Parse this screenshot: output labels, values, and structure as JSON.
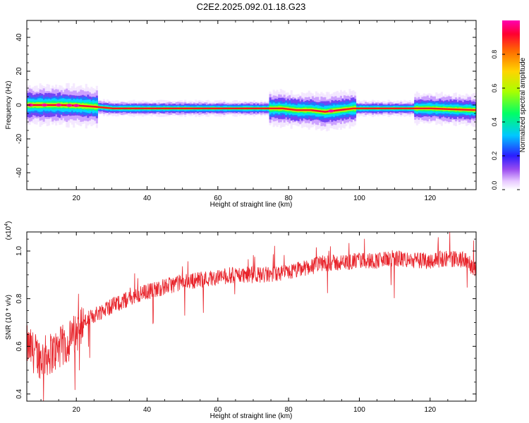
{
  "title": "C2E2.2025.092.01.18.G23",
  "colors": {
    "snr_line": "#e8232a",
    "colormap": [
      "#ffffff",
      "#d9a8ff",
      "#8a2be2",
      "#0000ff",
      "#00ffff",
      "#00ff00",
      "#ffff00",
      "#ff8c00",
      "#ff0000",
      "#ff00ff"
    ]
  },
  "chart_data": [
    {
      "type": "heatmap",
      "title": "C2E2.2025.092.01.18.G23",
      "xlabel": "Height of straight line (km)",
      "ylabel": "Frequency (Hz)",
      "xlim": [
        6,
        133
      ],
      "ylim": [
        -50,
        50
      ],
      "x_ticks": [
        20,
        40,
        60,
        80,
        100,
        120
      ],
      "y_ticks": [
        40,
        20,
        0,
        -20,
        -40
      ],
      "colorbar": {
        "label": "Normalized spectral amplitude",
        "range": [
          0,
          1
        ],
        "ticks": [
          "0.8",
          "0.6",
          "0.4",
          "0.2",
          "0.0"
        ],
        "tick_values": [
          0.8,
          0.6,
          0.4,
          0.2,
          0.0
        ]
      },
      "ridge": {
        "x": [
          6,
          10,
          15,
          20,
          25,
          30,
          40,
          50,
          60,
          70,
          78,
          82,
          86,
          90,
          94,
          98,
          100,
          110,
          120,
          126,
          133
        ],
        "center_hz": [
          0,
          0,
          0,
          -0.3,
          -1,
          -2,
          -2,
          -2,
          -2,
          -2,
          -2,
          -3,
          -3,
          -4,
          -3,
          -2,
          -2,
          -2,
          -2,
          -2.5,
          -3
        ]
      }
    },
    {
      "type": "line",
      "xlabel": "Height of straight line (km)",
      "ylabel": "SNR (10 * v/v)",
      "y_exponent_label": "(x10",
      "y_exponent_power": "4",
      "y_exponent_close": ")",
      "xlim": [
        6,
        133
      ],
      "ylim": [
        0.37,
        1.08
      ],
      "x_ticks": [
        20,
        40,
        60,
        80,
        100,
        120
      ],
      "y_ticks": [
        "0.4",
        "0.6",
        "0.8",
        "1.0"
      ],
      "y_tick_values": [
        0.4,
        0.6,
        0.8,
        1.0
      ],
      "series": [
        {
          "x": [
            6,
            10,
            14,
            18,
            22,
            26,
            30,
            35,
            40,
            45,
            50,
            55,
            60,
            65,
            70,
            75,
            80,
            85,
            90,
            95,
            100,
            105,
            110,
            115,
            120,
            125,
            130,
            133
          ],
          "values": [
            0.6,
            0.55,
            0.58,
            0.62,
            0.7,
            0.74,
            0.77,
            0.8,
            0.83,
            0.85,
            0.87,
            0.88,
            0.89,
            0.9,
            0.9,
            0.9,
            0.91,
            0.93,
            0.95,
            0.95,
            0.96,
            0.96,
            0.97,
            0.96,
            0.96,
            0.97,
            0.96,
            0.92
          ]
        }
      ]
    }
  ]
}
